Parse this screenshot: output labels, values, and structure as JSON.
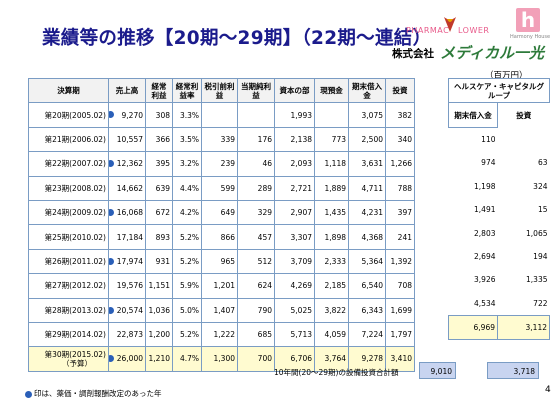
{
  "header": {
    "title": "業績等の推移【20期～29期】（22期～連結）",
    "brand_pharmacy": "PHARMAC",
    "brand_flower": "LOWER",
    "brand_h": "h",
    "brand_harmony": "Harmony House",
    "company_prefix": "株式会社",
    "company_name": "メディカル一光",
    "unit": "（百万円）"
  },
  "chart_data": {
    "type": "table",
    "columns": [
      "決算期",
      "売上高",
      "経常利益",
      "経常利益率",
      "税引前利益",
      "当期純利益",
      "資本の部",
      "現預金",
      "期末借入金",
      "投資"
    ],
    "rows": [
      {
        "period": "第20期(2005.02)",
        "marked": true,
        "cells": [
          "9,270",
          "308",
          "3.3%",
          "",
          "",
          "1,993",
          "",
          "3,075",
          "382"
        ]
      },
      {
        "period": "第21期(2006.02)",
        "marked": false,
        "cells": [
          "10,557",
          "366",
          "3.5%",
          "339",
          "176",
          "2,138",
          "773",
          "2,500",
          "340"
        ]
      },
      {
        "period": "第22期(2007.02)",
        "marked": true,
        "cells": [
          "12,362",
          "395",
          "3.2%",
          "239",
          "46",
          "2,093",
          "1,118",
          "3,631",
          "1,266"
        ]
      },
      {
        "period": "第23期(2008.02)",
        "marked": false,
        "cells": [
          "14,662",
          "639",
          "4.4%",
          "599",
          "289",
          "2,721",
          "1,889",
          "4,711",
          "788"
        ]
      },
      {
        "period": "第24期(2009.02)",
        "marked": true,
        "cells": [
          "16,068",
          "672",
          "4.2%",
          "649",
          "329",
          "2,907",
          "1,435",
          "4,231",
          "397"
        ]
      },
      {
        "period": "第25期(2010.02)",
        "marked": false,
        "cells": [
          "17,184",
          "893",
          "5.2%",
          "866",
          "457",
          "3,307",
          "1,898",
          "4,368",
          "241"
        ]
      },
      {
        "period": "第26期(2011.02)",
        "marked": true,
        "cells": [
          "17,974",
          "931",
          "5.2%",
          "965",
          "512",
          "3,709",
          "2,333",
          "5,364",
          "1,392"
        ]
      },
      {
        "period": "第27期(2012.02)",
        "marked": false,
        "cells": [
          "19,576",
          "1,151",
          "5.9%",
          "1,201",
          "624",
          "4,269",
          "2,185",
          "6,540",
          "708"
        ]
      },
      {
        "period": "第28期(2013.02)",
        "marked": true,
        "cells": [
          "20,574",
          "1,036",
          "5.0%",
          "1,407",
          "790",
          "5,025",
          "3,822",
          "6,343",
          "1,699"
        ]
      },
      {
        "period": "第29期(2014.02)",
        "marked": false,
        "cells": [
          "22,873",
          "1,200",
          "5.2%",
          "1,222",
          "685",
          "5,713",
          "4,059",
          "7,224",
          "1,797"
        ]
      },
      {
        "period": "第30期(2015.02)",
        "period_note": "（予算）",
        "marked": true,
        "forecast": true,
        "cells": [
          "26,000",
          "1,210",
          "4.7%",
          "1,300",
          "700",
          "6,706",
          "3,764",
          "9,278",
          "3,410"
        ]
      }
    ],
    "side_table": {
      "title": "ヘルスケア・キャピタルグループ",
      "columns": [
        "期末借入金",
        "投資"
      ],
      "rows": [
        [
          "110",
          ""
        ],
        [
          "974",
          "63"
        ],
        [
          "1,198",
          "324"
        ],
        [
          "1,491",
          "15"
        ],
        [
          "2,803",
          "1,065"
        ],
        [
          "2,694",
          "194"
        ],
        [
          "3,926",
          "1,335"
        ],
        [
          "4,534",
          "722"
        ],
        [
          "6,969",
          "3,112"
        ]
      ]
    },
    "totals": {
      "label": "10年間(20～29期)の設備投資合計額",
      "investment_total": "9,010",
      "group_investment_total": "3,718"
    }
  },
  "footer": {
    "note": "印は、薬価・調剤報酬改定のあった年",
    "page_number": "4"
  }
}
